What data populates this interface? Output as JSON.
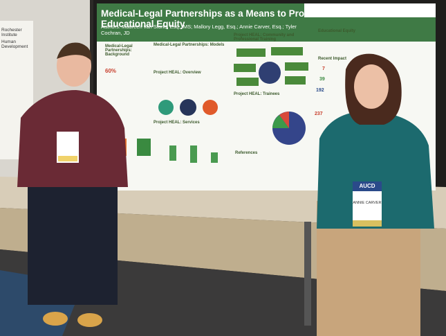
{
  "poster": {
    "title": "Medical-Legal Partnerships as a Means to Promote Educational Equity",
    "authors": "Authors: Maureen van Stone, Esq., MS; Mallory Legg, Esq.; Annie Carver, Esq.; Tyler Cochran, JD",
    "sections": [
      "Medical-Legal Partnerships: Background",
      "Medical-Legal Partnerships: Models",
      "Project HEAL: Overview",
      "Project HEAL: Services",
      "Project HEAL: Community and Professional Training",
      "Project HEAL: Trainees",
      "References",
      "Educational Equity",
      "Recent Impact"
    ],
    "stat": "60%",
    "impact_numbers": [
      "7",
      "39",
      "192",
      "237"
    ]
  },
  "side_poster": {
    "lines": [
      "Rochester Institute",
      "Human Development"
    ]
  },
  "badge": {
    "org": "AUCD",
    "name": "ANNIE CARVER"
  }
}
